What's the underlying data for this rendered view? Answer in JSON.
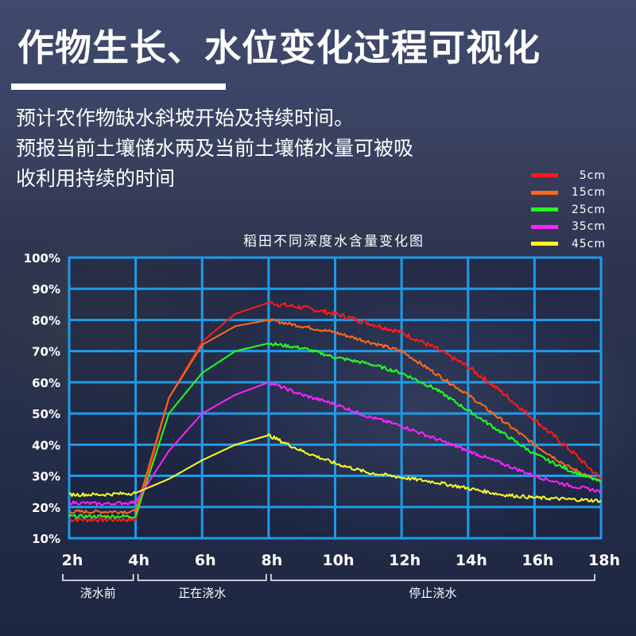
{
  "header": {
    "title": "作物生长、水位变化过程可视化",
    "description_lines": [
      "预计农作物缺水斜坡开始及持续时间。",
      "预报当前土壤储水两及当前土壤储水量可被吸",
      "收利用持续的时间"
    ]
  },
  "chart_data": {
    "type": "line",
    "title": "稻田不同深度水含量变化图",
    "xlabel": "",
    "ylabel": "",
    "x": [
      2,
      3,
      4,
      5,
      6,
      7,
      8,
      9,
      10,
      11,
      12,
      13,
      14,
      15,
      16,
      17,
      18
    ],
    "x_tick_labels": [
      "2h",
      "4h",
      "6h",
      "8h",
      "10h",
      "12h",
      "14h",
      "16h",
      "18h"
    ],
    "y_tick_labels": [
      "100%",
      "90%",
      "80%",
      "70%",
      "60%",
      "50%",
      "40%",
      "30%",
      "20%",
      "10%"
    ],
    "xlim": [
      2,
      18
    ],
    "ylim": [
      10,
      100
    ],
    "grid": true,
    "legend_position": "top-right (outside plot)",
    "series": [
      {
        "name": "5cm",
        "color": "#ff1a1a",
        "values": [
          16,
          16,
          16,
          55,
          73,
          82,
          85.5,
          84,
          82,
          79,
          76,
          71,
          65,
          57,
          48,
          39,
          29
        ]
      },
      {
        "name": "15cm",
        "color": "#ff6a1a",
        "values": [
          18.5,
          18.5,
          18.5,
          55,
          72,
          78,
          80,
          78,
          76,
          73,
          70,
          63,
          56,
          48,
          40,
          33,
          28
        ]
      },
      {
        "name": "25cm",
        "color": "#22ff22",
        "values": [
          17,
          17,
          17,
          50,
          63,
          70,
          72.5,
          71,
          68,
          66,
          63,
          58,
          51,
          44,
          37,
          32,
          28
        ]
      },
      {
        "name": "35cm",
        "color": "#ff22ff",
        "values": [
          21.5,
          21,
          21.5,
          38,
          50,
          56,
          60,
          56,
          53,
          49,
          46,
          42,
          38,
          34,
          30,
          27,
          25
        ]
      },
      {
        "name": "45cm",
        "color": "#ffff22",
        "values": [
          24,
          24,
          24.5,
          29,
          35,
          40,
          43,
          38,
          34,
          31,
          29.5,
          28,
          26,
          24,
          23,
          22.5,
          22
        ]
      }
    ],
    "phases": [
      {
        "label": "浇水前",
        "from": 2,
        "to": 4
      },
      {
        "label": "正在浇水",
        "from": 4,
        "to": 8
      },
      {
        "label": "停止浇水",
        "from": 8,
        "to": 18
      }
    ]
  },
  "style": {
    "grid_color": "#1e9be8",
    "text_color": "#ffffff"
  }
}
